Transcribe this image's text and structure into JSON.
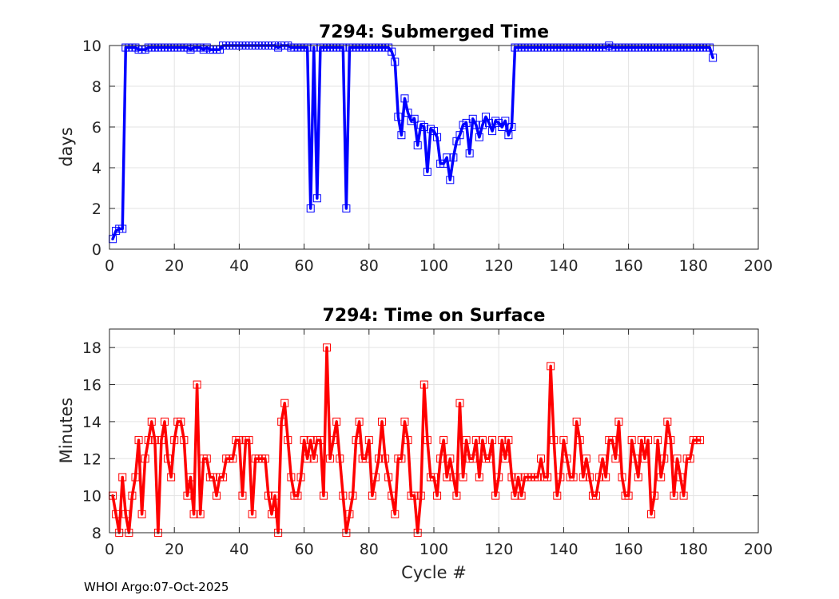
{
  "footer": "WHOI Argo:07-Oct-2025",
  "chart_data": [
    {
      "type": "line",
      "title": "7294: Submerged Time",
      "xlabel": "",
      "ylabel": "days",
      "xlim": [
        0,
        200
      ],
      "ylim": [
        0,
        10
      ],
      "xticks": [
        0,
        20,
        40,
        60,
        80,
        100,
        120,
        140,
        160,
        180,
        200
      ],
      "yticks": [
        0,
        2,
        4,
        6,
        8,
        10
      ],
      "grid": true,
      "color": "#0000ff",
      "marker": "square",
      "series": [
        {
          "name": "Submerged Time",
          "x_start": 1,
          "values": [
            0.5,
            0.9,
            1.0,
            1.0,
            9.9,
            9.9,
            9.9,
            9.9,
            9.8,
            9.8,
            9.8,
            9.9,
            9.9,
            9.9,
            9.9,
            9.9,
            9.9,
            9.9,
            9.9,
            9.9,
            9.9,
            9.9,
            9.9,
            9.9,
            9.8,
            9.9,
            9.9,
            9.9,
            9.8,
            9.9,
            9.8,
            9.8,
            9.8,
            9.8,
            10.0,
            10.0,
            10.0,
            10.0,
            10.0,
            10.0,
            10.0,
            10.0,
            10.0,
            10.0,
            10.0,
            10.0,
            10.0,
            10.0,
            10.0,
            10.0,
            10.0,
            9.9,
            10.0,
            10.0,
            10.0,
            9.9,
            9.9,
            9.9,
            9.9,
            9.9,
            9.9,
            2.0,
            9.9,
            2.5,
            9.9,
            9.9,
            9.9,
            9.9,
            9.9,
            9.9,
            9.9,
            9.9,
            2.0,
            9.9,
            9.9,
            9.9,
            9.9,
            9.9,
            9.9,
            9.9,
            9.9,
            9.9,
            9.9,
            9.9,
            9.9,
            9.9,
            9.7,
            9.2,
            6.5,
            5.6,
            7.4,
            6.7,
            6.3,
            6.4,
            5.1,
            6.1,
            6.0,
            3.8,
            5.9,
            5.8,
            5.5,
            4.2,
            4.2,
            4.5,
            3.4,
            4.5,
            5.3,
            5.6,
            6.1,
            6.2,
            4.7,
            6.4,
            6.1,
            5.5,
            6.1,
            6.5,
            6.2,
            5.8,
            6.3,
            6.2,
            6.0,
            6.3,
            5.6,
            6.0,
            9.9,
            9.9,
            9.9,
            9.9,
            9.9,
            9.9,
            9.9,
            9.9,
            9.9,
            9.9,
            9.9,
            9.9,
            9.9,
            9.9,
            9.9,
            9.9,
            9.9,
            9.9,
            9.9,
            9.9,
            9.9,
            9.9,
            9.9,
            9.9,
            9.9,
            9.9,
            9.9,
            9.9,
            9.9,
            10.0,
            9.9,
            9.9,
            9.9,
            9.9,
            9.9,
            9.9,
            9.9,
            9.9,
            9.9,
            9.9,
            9.9,
            9.9,
            9.9,
            9.9,
            9.9,
            9.9,
            9.9,
            9.9,
            9.9,
            9.9,
            9.9,
            9.9,
            9.9,
            9.9,
            9.9,
            9.9,
            9.9,
            9.9,
            9.9,
            9.9,
            9.9,
            9.4
          ]
        }
      ]
    },
    {
      "type": "line",
      "title": "7294: Time on Surface",
      "xlabel": "Cycle #",
      "ylabel": "Minutes",
      "xlim": [
        0,
        200
      ],
      "ylim": [
        8,
        19
      ],
      "xticks": [
        0,
        20,
        40,
        60,
        80,
        100,
        120,
        140,
        160,
        180,
        200
      ],
      "yticks": [
        8,
        10,
        12,
        14,
        16,
        18
      ],
      "grid": true,
      "color": "#ff0000",
      "marker": "square",
      "series": [
        {
          "name": "Time on Surface",
          "x_start": 1,
          "values": [
            10,
            9,
            8,
            11,
            9,
            8,
            10,
            11,
            13,
            9,
            12,
            13,
            14,
            13,
            8,
            13,
            14,
            12,
            11,
            13,
            14,
            14,
            13,
            10,
            11,
            9,
            16,
            9,
            12,
            12,
            11,
            11,
            10,
            11,
            11,
            12,
            12,
            12,
            13,
            13,
            10,
            13,
            13,
            9,
            12,
            12,
            12,
            12,
            10,
            9,
            10,
            8,
            14,
            15,
            13,
            11,
            10,
            10,
            11,
            13,
            12,
            13,
            12,
            13,
            13,
            10,
            18,
            12,
            13,
            14,
            12,
            10,
            8,
            9,
            10,
            13,
            14,
            12,
            12,
            13,
            10,
            11,
            12,
            14,
            12,
            11,
            10,
            9,
            12,
            12,
            14,
            13,
            10,
            10,
            8,
            10,
            16,
            13,
            11,
            11,
            10,
            12,
            13,
            11,
            12,
            11,
            10,
            15,
            11,
            13,
            12,
            12,
            13,
            11,
            13,
            12,
            12,
            13,
            10,
            11,
            13,
            12,
            13,
            11,
            10,
            11,
            10,
            11,
            11,
            11,
            11,
            11,
            12,
            11,
            11,
            17,
            13,
            10,
            11,
            13,
            12,
            11,
            11,
            14,
            13,
            11,
            12,
            11,
            10,
            10,
            11,
            12,
            11,
            13,
            13,
            12,
            14,
            11,
            10,
            10,
            13,
            12,
            11,
            13,
            12,
            13,
            9,
            10,
            13,
            11,
            12,
            14,
            13,
            10,
            12,
            11,
            10,
            12,
            12,
            13,
            13,
            13
          ]
        }
      ]
    }
  ]
}
